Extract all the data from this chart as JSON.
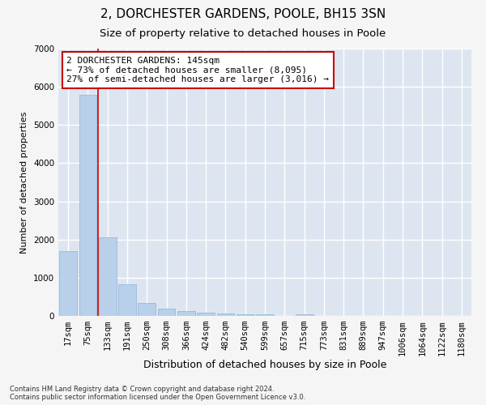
{
  "title": "2, DORCHESTER GARDENS, POOLE, BH15 3SN",
  "subtitle": "Size of property relative to detached houses in Poole",
  "xlabel": "Distribution of detached houses by size in Poole",
  "ylabel": "Number of detached properties",
  "bar_color": "#b8d0ea",
  "bar_edge_color": "#8db4d8",
  "background_color": "#dde6f0",
  "grid_color": "#ffffff",
  "categories": [
    "17sqm",
    "75sqm",
    "133sqm",
    "191sqm",
    "250sqm",
    "308sqm",
    "366sqm",
    "424sqm",
    "482sqm",
    "540sqm",
    "599sqm",
    "657sqm",
    "715sqm",
    "773sqm",
    "831sqm",
    "889sqm",
    "947sqm",
    "1006sqm",
    "1064sqm",
    "1122sqm",
    "1180sqm"
  ],
  "values": [
    1700,
    5800,
    2050,
    820,
    350,
    195,
    130,
    90,
    65,
    50,
    35,
    0,
    50,
    0,
    0,
    0,
    0,
    0,
    0,
    0,
    0
  ],
  "ylim": [
    0,
    7000
  ],
  "yticks": [
    0,
    1000,
    2000,
    3000,
    4000,
    5000,
    6000,
    7000
  ],
  "annotation_text": "2 DORCHESTER GARDENS: 145sqm\n← 73% of detached houses are smaller (8,095)\n27% of semi-detached houses are larger (3,016) →",
  "annotation_box_color": "#ffffff",
  "annotation_box_edge": "#cc0000",
  "vline_x": 1.5,
  "vline_color": "#cc0000",
  "footer": "Contains HM Land Registry data © Crown copyright and database right 2024.\nContains public sector information licensed under the Open Government Licence v3.0.",
  "title_fontsize": 11,
  "subtitle_fontsize": 9.5,
  "xlabel_fontsize": 9,
  "ylabel_fontsize": 8,
  "tick_fontsize": 7.5,
  "annotation_fontsize": 8,
  "footer_fontsize": 6
}
